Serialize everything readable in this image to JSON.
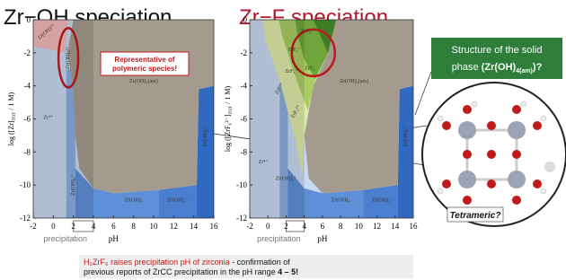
{
  "left_panel": {
    "title": "Zr−OH speciation",
    "ylabel": "log ([Zr]",
    "ylabel_sub": "TOT",
    "ylabel_end": " / 1 M)",
    "regions": [
      "Zr⁴⁺",
      "Zr(OH)₂²⁺",
      "Zr(OH)₄(am)",
      "Zr(OH)₃⁺",
      "Zr(OH)₄",
      "Zr(OH)₅⁻",
      "Zr(OH)₆²⁻",
      "Zr(OH)³⁺"
    ],
    "callout": [
      "Representative of",
      "polymeric species!"
    ]
  },
  "right_panel": {
    "title": "Zr−F speciation",
    "ylabel": "log ([ZrF₆²⁻]",
    "ylabel_sub": "TOT",
    "ylabel_end": " / 1 M)",
    "regions": [
      "ZrF₆²⁻",
      "ZrF₅⁻",
      "ZrF₄",
      "ZrF₃⁺",
      "ZrF₂²⁺",
      "ZrF³⁺",
      "Zr⁴⁺",
      "Zr(OH)₄(am)",
      "Zr(OH)₃⁺",
      "Zr(OH)₄",
      "Zr(OH)₅⁻",
      "Zr(OH)₆²⁻"
    ]
  },
  "axes": {
    "xticks": [
      -2,
      0,
      2,
      4,
      6,
      8,
      10,
      12,
      14,
      16
    ],
    "yticks": [
      0,
      -2,
      -4,
      -6,
      -8,
      -10,
      -12
    ],
    "xlabel": "pH",
    "precipitation": "precipitation"
  },
  "structure_box": {
    "line1": "Structure of the solid",
    "line2": "phase ",
    "formula": "(Zr(OH)",
    "formula_sub": "4(am)",
    "formula_end": ")?"
  },
  "tetrameric": "Tetrameric?",
  "conclusion": {
    "highlight": "H₂ZrF₆ raises precipitation pH of zirconia",
    "rest": " - confirmation of",
    "line2": "previous reports of ZrCC precipitation in the pH range ",
    "range": "4 – 5!"
  }
}
